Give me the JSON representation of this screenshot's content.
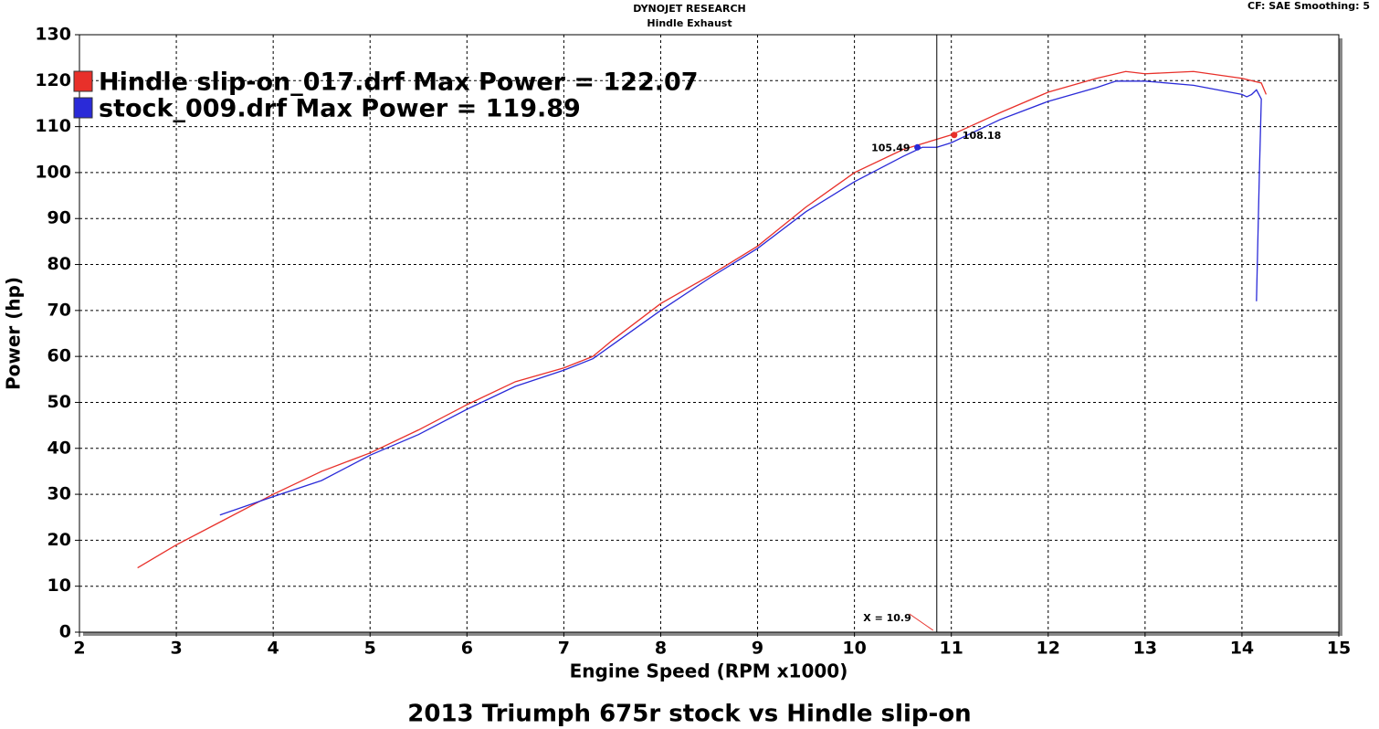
{
  "chart_data": {
    "type": "line",
    "header": "DYNOJET RESEARCH",
    "subheader": "Hindle Exhaust",
    "settings": "CF: SAE  Smoothing: 5",
    "title": "2013 Triumph 675r stock vs Hindle slip-on",
    "xlabel": "Engine Speed (RPM x1000)",
    "ylabel": "Power (hp)",
    "xlim": [
      2,
      15
    ],
    "ylim": [
      0,
      130
    ],
    "xticks": [
      2,
      3,
      4,
      5,
      6,
      7,
      8,
      9,
      10,
      11,
      12,
      13,
      14,
      15
    ],
    "yticks": [
      0,
      10,
      20,
      30,
      40,
      50,
      60,
      70,
      80,
      90,
      100,
      110,
      120,
      130
    ],
    "grid": true,
    "series": [
      {
        "name": "Hindle slip-on_017.drf Max Power = 122.07",
        "color": "#e8302a",
        "x": [
          2.6,
          3,
          3.5,
          4,
          4.5,
          5,
          5.5,
          6,
          6.5,
          7,
          7.3,
          7.5,
          8,
          8.5,
          9,
          9.5,
          10,
          10.5,
          11,
          11.5,
          12,
          12.5,
          12.8,
          13,
          13.5,
          14,
          14.2,
          14.25
        ],
        "values": [
          14,
          19,
          24.5,
          30,
          35,
          39,
          44,
          49.5,
          54.5,
          57.5,
          60,
          63.5,
          71.5,
          77.5,
          84,
          92.5,
          100,
          105,
          108.2,
          113,
          117.5,
          120.5,
          122,
          121.5,
          122,
          120.5,
          119.5,
          117
        ]
      },
      {
        "name": "stock_009.drf Max Power = 119.89",
        "color": "#2a2ad8",
        "x": [
          3.45,
          4,
          4.5,
          5,
          5.5,
          6,
          6.5,
          7,
          7.3,
          7.5,
          8,
          8.5,
          9,
          9.5,
          10,
          10.5,
          10.7,
          10.85,
          11,
          11.5,
          12,
          12.5,
          12.7,
          13,
          13.5,
          14,
          14.05,
          14.1,
          14.15,
          14.2,
          14.18,
          14.15
        ],
        "values": [
          25.5,
          29.5,
          33,
          38.5,
          43,
          48.5,
          53.5,
          57,
          59.5,
          62.5,
          70,
          77,
          83.5,
          91.5,
          98,
          103.5,
          105.5,
          105.5,
          106.5,
          111.5,
          115.5,
          118.5,
          119.9,
          119.9,
          119,
          117,
          116.5,
          117,
          118,
          116,
          100,
          72
        ]
      }
    ],
    "cursor": {
      "x": 10.85,
      "label": "X = 10.9"
    },
    "markers": [
      {
        "x": 10.65,
        "y": 105.49,
        "color": "#2a2ad8"
      },
      {
        "x": 11.03,
        "y": 108.18,
        "color": "#e8302a"
      }
    ]
  }
}
